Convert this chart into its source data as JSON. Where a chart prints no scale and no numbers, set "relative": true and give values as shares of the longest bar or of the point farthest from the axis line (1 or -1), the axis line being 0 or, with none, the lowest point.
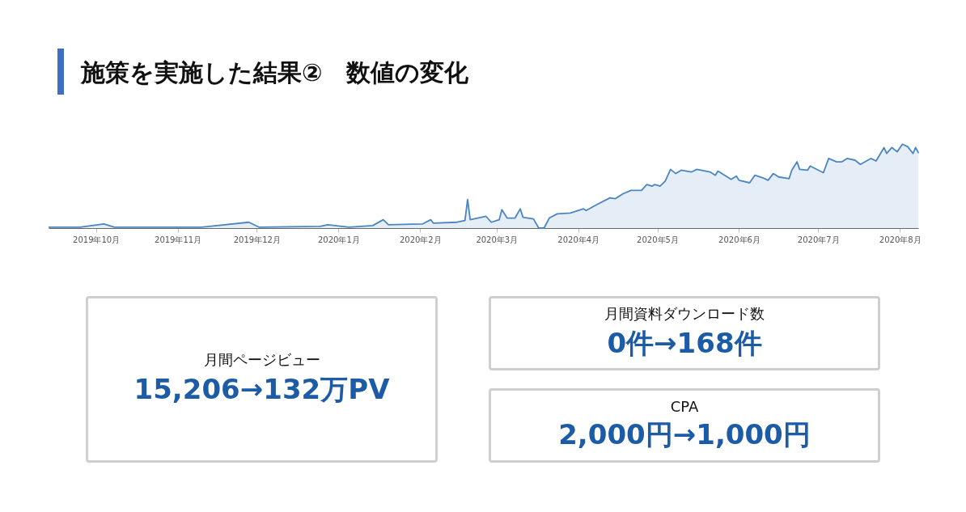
{
  "chart_data": [
    {
      "type": "area",
      "title": "施策を実施した結果②　数値の変化",
      "relative": true,
      "color": "#4a86bf",
      "x": [
        "2019-09-13",
        "2019-09-25",
        "2019-10-04",
        "2019-10-08",
        "2019-10-26",
        "2019-11-10",
        "2019-11-28",
        "2019-12-02",
        "2019-12-25",
        "2019-12-28",
        "2020-01-05",
        "2020-01-14",
        "2020-01-18",
        "2020-01-20",
        "2020-02-02",
        "2020-02-05",
        "2020-02-06",
        "2020-02-15",
        "2020-02-18",
        "2020-02-19",
        "2020-02-20",
        "2020-02-26",
        "2020-02-28",
        "2020-03-02",
        "2020-03-03",
        "2020-03-05",
        "2020-03-08",
        "2020-03-10",
        "2020-03-11",
        "2020-03-15",
        "2020-03-17",
        "2020-03-19",
        "2020-03-21",
        "2020-03-24",
        "2020-03-29",
        "2020-04-03",
        "2020-04-04",
        "2020-04-08",
        "2020-04-13",
        "2020-04-15",
        "2020-04-18",
        "2020-04-21",
        "2020-04-25",
        "2020-04-27",
        "2020-04-29",
        "2020-04-30",
        "2020-05-02",
        "2020-05-04",
        "2020-05-06",
        "2020-05-08",
        "2020-05-10",
        "2020-05-14",
        "2020-05-16",
        "2020-05-21",
        "2020-05-23",
        "2020-05-24",
        "2020-05-29",
        "2020-05-31",
        "2020-06-01",
        "2020-06-05",
        "2020-06-07",
        "2020-06-10",
        "2020-06-12",
        "2020-06-14",
        "2020-06-16",
        "2020-06-20",
        "2020-06-21",
        "2020-06-23",
        "2020-06-24",
        "2020-06-27",
        "2020-06-28",
        "2020-07-03",
        "2020-07-05",
        "2020-07-08",
        "2020-07-10",
        "2020-07-12",
        "2020-07-15",
        "2020-07-17",
        "2020-07-21",
        "2020-07-23",
        "2020-07-26",
        "2020-07-27",
        "2020-07-29",
        "2020-07-31",
        "2020-08-02",
        "2020-08-04",
        "2020-08-06",
        "2020-08-07",
        "2020-08-08"
      ],
      "values": [
        0.01,
        0.01,
        0.05,
        0.01,
        0.01,
        0.01,
        0.07,
        0.01,
        0.02,
        0.04,
        0.01,
        0.03,
        0.1,
        0.04,
        0.05,
        0.1,
        0.06,
        0.07,
        0.09,
        0.34,
        0.1,
        0.14,
        0.07,
        0.1,
        0.22,
        0.12,
        0.12,
        0.23,
        0.13,
        0.11,
        0,
        0,
        0.12,
        0.17,
        0.18,
        0.23,
        0.21,
        0.28,
        0.36,
        0.35,
        0.41,
        0.45,
        0.45,
        0.52,
        0.5,
        0.52,
        0.5,
        0.56,
        0.7,
        0.65,
        0.69,
        0.67,
        0.7,
        0.67,
        0.63,
        0.68,
        0.58,
        0.62,
        0.57,
        0.54,
        0.63,
        0.6,
        0.57,
        0.65,
        0.61,
        0.59,
        0.69,
        0.79,
        0.7,
        0.69,
        0.74,
        0.66,
        0.83,
        0.79,
        0.79,
        0.83,
        0.81,
        0.76,
        0.83,
        0.8,
        0.96,
        0.89,
        0.96,
        0.91,
        1,
        0.97,
        0.89,
        0.96,
        0.9
      ],
      "xlim": [
        "2019-09-13",
        "2020-08-08"
      ],
      "xticks": [
        {
          "value": "2019-10-01",
          "label": "2019年10月"
        },
        {
          "value": "2019-11-01",
          "label": "2019年11月"
        },
        {
          "value": "2019-12-01",
          "label": "2019年12月"
        },
        {
          "value": "2020-01-01",
          "label": "2020年1月"
        },
        {
          "value": "2020-02-01",
          "label": "2020年2月"
        },
        {
          "value": "2020-03-01",
          "label": "2020年3月"
        },
        {
          "value": "2020-04-01",
          "label": "2020年4月"
        },
        {
          "value": "2020-05-01",
          "label": "2020年5月"
        },
        {
          "value": "2020-06-01",
          "label": "2020年6月"
        },
        {
          "value": "2020-07-01",
          "label": "2020年7月"
        },
        {
          "value": "2020-08-01",
          "label": "2020年8月"
        }
      ]
    },
    {
      "type": "other",
      "annotations": [
        "月間ページビュー",
        "15,206→132万PV",
        "月間資料ダウンロード数",
        "0件→168件",
        "CPA",
        "2,000円→1,000円"
      ]
    }
  ]
}
